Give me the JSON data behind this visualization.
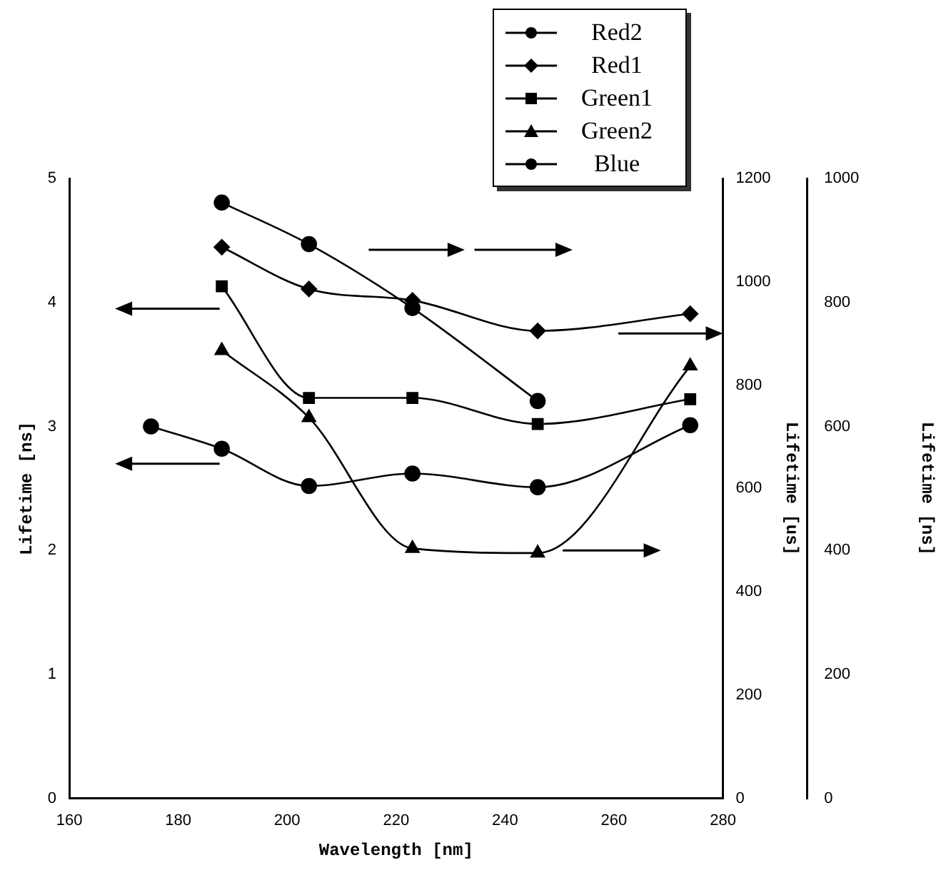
{
  "chart_data": {
    "type": "line",
    "xlabel": "Wavelength [nm]",
    "ylabel": "Lifetime [ns]",
    "y2label": "Lifetime [us]",
    "y3label": "Lifetime [ns]",
    "xlim": [
      160,
      280
    ],
    "xticks": [
      160,
      180,
      200,
      220,
      240,
      260,
      280
    ],
    "ylim": [
      0,
      5
    ],
    "yticks": [
      0,
      1,
      2,
      3,
      4,
      5
    ],
    "y2lim": [
      0,
      1200
    ],
    "y2ticks": [
      0,
      200,
      400,
      600,
      800,
      1000,
      1200
    ],
    "y3lim": [
      0,
      1000
    ],
    "y3ticks": [
      0,
      200,
      400,
      600,
      800,
      1000
    ],
    "legend": "top right",
    "grid": false,
    "line_style": "solid",
    "series": [
      {
        "name": "Red2",
        "color": "#000000",
        "marker": "circle",
        "x": [
          175,
          188,
          204,
          223,
          246,
          274
        ],
        "values": [
          3.0,
          2.82,
          2.52,
          2.62,
          2.51,
          3.01
        ]
      },
      {
        "name": "Red1",
        "color": "#000000",
        "marker": "diamond",
        "axis": "y2",
        "x": [
          188,
          204,
          223,
          246,
          274
        ],
        "values": [
          1067,
          986,
          964,
          905,
          938
        ]
      },
      {
        "name": "Green1",
        "color": "#000000",
        "marker": "square",
        "x": [
          188,
          204,
          223,
          246,
          274
        ],
        "values": [
          4.13,
          3.23,
          3.23,
          3.02,
          3.22
        ]
      },
      {
        "name": "Green2",
        "color": "#000000",
        "marker": "triangle",
        "axis": "y2",
        "x": [
          188,
          204,
          223,
          246,
          274
        ],
        "values": [
          867,
          737,
          484,
          475,
          837
        ]
      },
      {
        "name": "Blue",
        "color": "#000000",
        "marker": "circle",
        "axis": "y3",
        "x": [
          188,
          204,
          223,
          246
        ],
        "values": [
          961,
          894,
          791,
          641
        ]
      }
    ]
  }
}
